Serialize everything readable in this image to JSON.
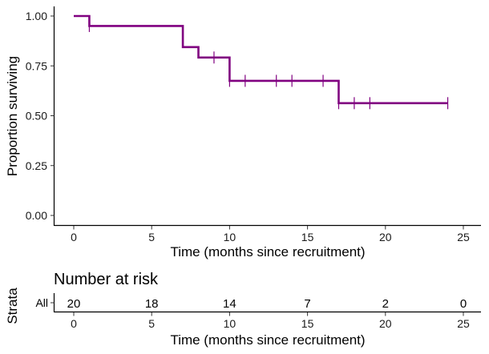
{
  "chart_data": [
    {
      "type": "line",
      "kind": "kaplan-meier survival curve",
      "xlabel": "Time (months since recruitment)",
      "ylabel": "Proportion surviving",
      "xlim": [
        0,
        25
      ],
      "ylim": [
        0,
        1
      ],
      "x_ticks": [
        0,
        5,
        10,
        15,
        20,
        25
      ],
      "x_tick_labels": [
        "0",
        "5",
        "10",
        "15",
        "20",
        "25"
      ],
      "y_ticks": [
        0,
        0.25,
        0.5,
        0.75,
        1
      ],
      "y_tick_labels": [
        "0.00",
        "0.25",
        "0.50",
        "0.75",
        "1.00"
      ],
      "grid": false,
      "color": "#800080",
      "series": [
        {
          "step_times": [
            0,
            1,
            7,
            8,
            10,
            17,
            24
          ],
          "step_survival": [
            1.0,
            0.95,
            0.844,
            0.792,
            0.675,
            0.563,
            0.563
          ],
          "censor_times": [
            1,
            9,
            10,
            11,
            13,
            14,
            16,
            17,
            18,
            19,
            24
          ],
          "censor_survival": [
            0.95,
            0.792,
            0.675,
            0.675,
            0.675,
            0.675,
            0.675,
            0.563,
            0.563,
            0.563,
            0.563
          ]
        }
      ]
    },
    {
      "type": "table",
      "title": "Number at risk",
      "ylabel": "Strata",
      "xlabel": "Time (months since recruitment)",
      "xlim": [
        0,
        25
      ],
      "x_tick_labels": [
        "0",
        "5",
        "10",
        "15",
        "20",
        "25"
      ],
      "strata": [
        "All"
      ],
      "strata_color": "#800080",
      "times": [
        0,
        5,
        10,
        15,
        20,
        25
      ],
      "at_risk": [
        20,
        18,
        14,
        7,
        2,
        0
      ]
    }
  ]
}
